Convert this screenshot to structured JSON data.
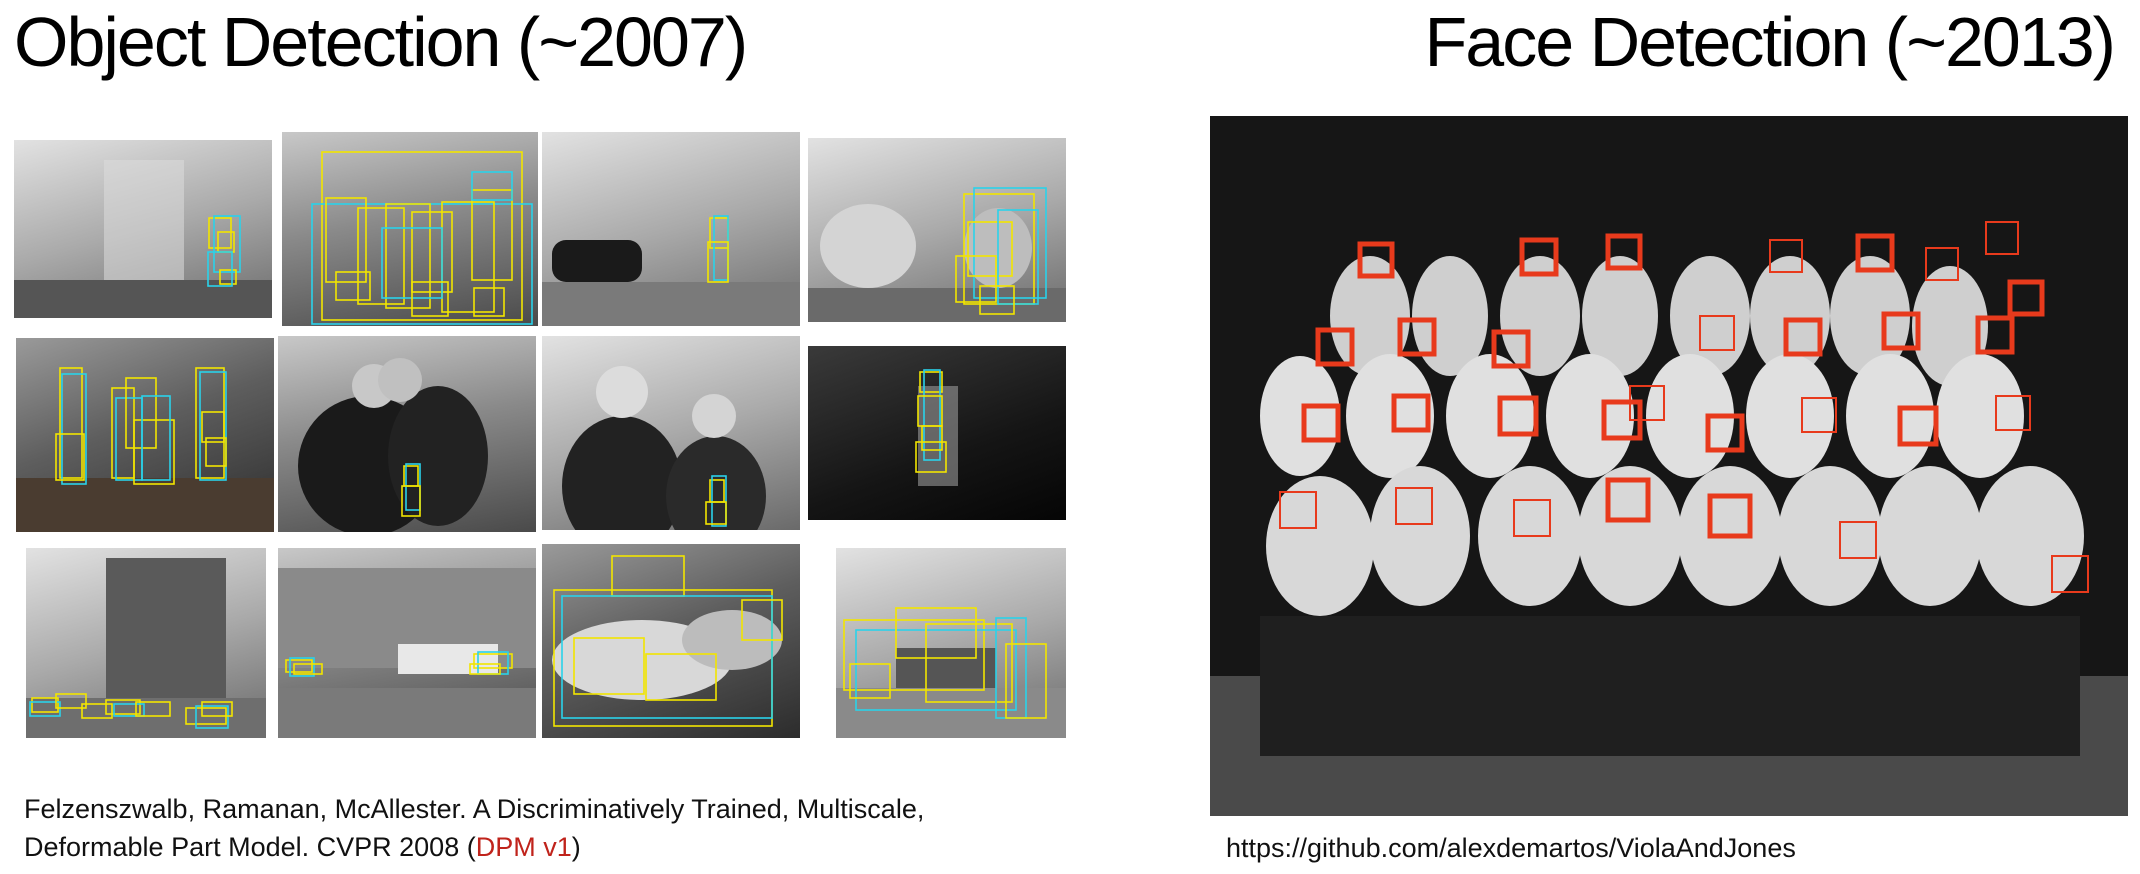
{
  "left": {
    "title": "Object Detection (~2007)",
    "citation": {
      "line1": "Felzenszwalb, Ramanan, McAllester. A Discriminatively Trained, Multiscale,",
      "line2_prefix": "Deformable Part Model. CVPR 2008 (",
      "highlight": "DPM v1",
      "line2_suffix": ")",
      "highlight_color": "#c0231b"
    }
  },
  "right": {
    "title": "Face Detection (~2013)",
    "source_link": "https://github.com/alexdemartos/ViolaAndJones"
  },
  "colors": {
    "detection_yellow": "#f2e500",
    "detection_cyan": "#2ad2ea",
    "face_box_red": "#e83a1c"
  }
}
